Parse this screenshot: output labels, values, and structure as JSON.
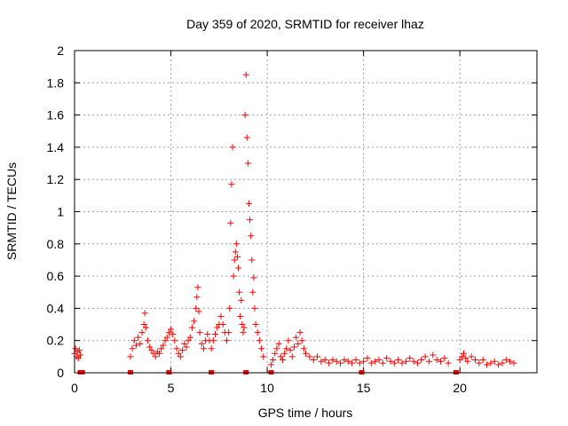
{
  "chart_data": {
    "type": "scatter",
    "title": "Day 359 of 2020, SRMTID for receiver lhaz",
    "xlabel": "GPS time / hours",
    "ylabel": "SRMTID / TECUs",
    "xlim": [
      0,
      24
    ],
    "ylim": [
      0,
      2
    ],
    "xticks": [
      0,
      5,
      10,
      15,
      20
    ],
    "yticks": [
      0,
      0.2,
      0.4,
      0.6,
      0.8,
      1,
      1.2,
      1.4,
      1.6,
      1.8,
      2
    ],
    "grid": true,
    "marker": "+",
    "color": "#ff0000",
    "zero_markers": [
      0.3,
      0.4,
      2.9,
      4.9,
      7.1,
      8.9,
      10.2,
      14.9,
      19.8
    ],
    "series": [
      {
        "name": "SRMTID",
        "points": [
          [
            0.0,
            0.12
          ],
          [
            0.05,
            0.15
          ],
          [
            0.1,
            0.1
          ],
          [
            0.15,
            0.13
          ],
          [
            0.2,
            0.09
          ],
          [
            0.25,
            0.14
          ],
          [
            0.3,
            0.11
          ],
          [
            2.9,
            0.1
          ],
          [
            3.0,
            0.15
          ],
          [
            3.1,
            0.2
          ],
          [
            3.2,
            0.17
          ],
          [
            3.3,
            0.22
          ],
          [
            3.4,
            0.18
          ],
          [
            3.5,
            0.25
          ],
          [
            3.6,
            0.3
          ],
          [
            3.65,
            0.37
          ],
          [
            3.7,
            0.28
          ],
          [
            3.8,
            0.2
          ],
          [
            3.9,
            0.16
          ],
          [
            4.0,
            0.14
          ],
          [
            4.1,
            0.12
          ],
          [
            4.2,
            0.1
          ],
          [
            4.3,
            0.13
          ],
          [
            4.4,
            0.12
          ],
          [
            4.5,
            0.15
          ],
          [
            4.6,
            0.17
          ],
          [
            4.7,
            0.2
          ],
          [
            4.8,
            0.22
          ],
          [
            4.9,
            0.25
          ],
          [
            5.0,
            0.27
          ],
          [
            5.1,
            0.24
          ],
          [
            5.2,
            0.2
          ],
          [
            5.3,
            0.15
          ],
          [
            5.4,
            0.12
          ],
          [
            5.5,
            0.1
          ],
          [
            5.6,
            0.14
          ],
          [
            5.7,
            0.18
          ],
          [
            5.8,
            0.16
          ],
          [
            5.9,
            0.2
          ],
          [
            6.0,
            0.22
          ],
          [
            6.1,
            0.28
          ],
          [
            6.2,
            0.32
          ],
          [
            6.3,
            0.4
          ],
          [
            6.35,
            0.47
          ],
          [
            6.4,
            0.53
          ],
          [
            6.45,
            0.38
          ],
          [
            6.5,
            0.25
          ],
          [
            6.6,
            0.18
          ],
          [
            6.7,
            0.15
          ],
          [
            6.8,
            0.2
          ],
          [
            6.9,
            0.24
          ],
          [
            7.0,
            0.2
          ],
          [
            7.1,
            0.15
          ],
          [
            7.2,
            0.2
          ],
          [
            7.3,
            0.24
          ],
          [
            7.4,
            0.28
          ],
          [
            7.5,
            0.3
          ],
          [
            7.6,
            0.35
          ],
          [
            7.7,
            0.3
          ],
          [
            7.8,
            0.25
          ],
          [
            7.9,
            0.2
          ],
          [
            8.0,
            0.25
          ],
          [
            8.05,
            0.4
          ],
          [
            8.1,
            0.93
          ],
          [
            8.15,
            1.17
          ],
          [
            8.2,
            1.4
          ],
          [
            8.25,
            0.6
          ],
          [
            8.3,
            0.7
          ],
          [
            8.35,
            0.75
          ],
          [
            8.4,
            0.8
          ],
          [
            8.45,
            0.72
          ],
          [
            8.5,
            0.65
          ],
          [
            8.55,
            0.5
          ],
          [
            8.6,
            0.35
          ],
          [
            8.65,
            0.45
          ],
          [
            8.7,
            0.3
          ],
          [
            8.75,
            0.25
          ],
          [
            8.8,
            0.28
          ],
          [
            8.85,
            1.6
          ],
          [
            8.9,
            1.85
          ],
          [
            8.95,
            1.46
          ],
          [
            9.0,
            1.3
          ],
          [
            9.05,
            1.05
          ],
          [
            9.1,
            0.95
          ],
          [
            9.15,
            0.85
          ],
          [
            9.2,
            0.7
          ],
          [
            9.25,
            0.5
          ],
          [
            9.3,
            0.59
          ],
          [
            9.35,
            0.4
          ],
          [
            9.4,
            0.3
          ],
          [
            9.5,
            0.25
          ],
          [
            9.6,
            0.2
          ],
          [
            9.7,
            0.15
          ],
          [
            9.8,
            0.1
          ],
          [
            10.2,
            0.05
          ],
          [
            10.3,
            0.08
          ],
          [
            10.4,
            0.12
          ],
          [
            10.5,
            0.15
          ],
          [
            10.6,
            0.18
          ],
          [
            10.7,
            0.1
          ],
          [
            10.8,
            0.08
          ],
          [
            10.9,
            0.12
          ],
          [
            11.0,
            0.15
          ],
          [
            11.1,
            0.2
          ],
          [
            11.2,
            0.14
          ],
          [
            11.3,
            0.1
          ],
          [
            11.4,
            0.16
          ],
          [
            11.5,
            0.22
          ],
          [
            11.6,
            0.18
          ],
          [
            11.7,
            0.25
          ],
          [
            11.8,
            0.2
          ],
          [
            11.9,
            0.15
          ],
          [
            12.0,
            0.12
          ],
          [
            12.2,
            0.1
          ],
          [
            12.4,
            0.08
          ],
          [
            12.6,
            0.1
          ],
          [
            12.8,
            0.07
          ],
          [
            13.0,
            0.08
          ],
          [
            13.2,
            0.06
          ],
          [
            13.4,
            0.08
          ],
          [
            13.6,
            0.07
          ],
          [
            13.8,
            0.06
          ],
          [
            14.0,
            0.08
          ],
          [
            14.2,
            0.07
          ],
          [
            14.4,
            0.06
          ],
          [
            14.6,
            0.08
          ],
          [
            14.8,
            0.06
          ],
          [
            15.0,
            0.07
          ],
          [
            15.2,
            0.09
          ],
          [
            15.4,
            0.06
          ],
          [
            15.6,
            0.07
          ],
          [
            15.8,
            0.08
          ],
          [
            16.0,
            0.06
          ],
          [
            16.2,
            0.09
          ],
          [
            16.4,
            0.07
          ],
          [
            16.6,
            0.06
          ],
          [
            16.8,
            0.08
          ],
          [
            17.0,
            0.06
          ],
          [
            17.2,
            0.07
          ],
          [
            17.4,
            0.09
          ],
          [
            17.6,
            0.07
          ],
          [
            17.8,
            0.06
          ],
          [
            18.0,
            0.08
          ],
          [
            18.2,
            0.1
          ],
          [
            18.4,
            0.07
          ],
          [
            18.6,
            0.11
          ],
          [
            18.8,
            0.08
          ],
          [
            19.0,
            0.07
          ],
          [
            19.2,
            0.09
          ],
          [
            19.4,
            0.06
          ],
          [
            20.0,
            0.08
          ],
          [
            20.1,
            0.1
          ],
          [
            20.2,
            0.12
          ],
          [
            20.3,
            0.09
          ],
          [
            20.4,
            0.07
          ],
          [
            20.6,
            0.1
          ],
          [
            20.8,
            0.08
          ],
          [
            21.0,
            0.06
          ],
          [
            21.2,
            0.08
          ],
          [
            21.4,
            0.05
          ],
          [
            21.6,
            0.06
          ],
          [
            21.8,
            0.07
          ],
          [
            22.0,
            0.05
          ],
          [
            22.2,
            0.06
          ],
          [
            22.4,
            0.08
          ],
          [
            22.6,
            0.07
          ],
          [
            22.8,
            0.06
          ]
        ]
      }
    ]
  }
}
